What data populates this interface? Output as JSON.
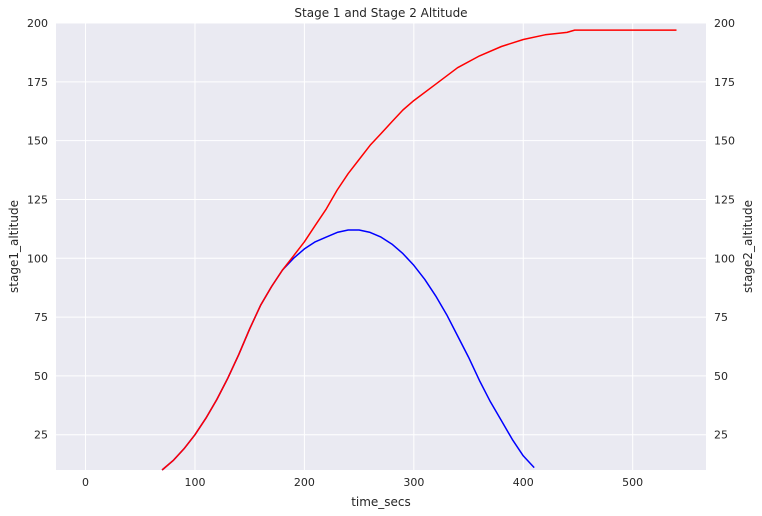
{
  "chart_data": {
    "type": "line",
    "title": "Stage 1 and Stage 2 Altitude",
    "xlabel": "time_secs",
    "ylabel_left": "stage1_altitude",
    "ylabel_right": "stage2_altitude",
    "xlim": [
      -27,
      567
    ],
    "ylim": [
      10,
      200
    ],
    "x_ticks": [
      0,
      100,
      200,
      300,
      400,
      500
    ],
    "y_ticks": [
      25,
      50,
      75,
      100,
      125,
      150,
      175,
      200
    ],
    "grid": true,
    "background": "#eaeaf2",
    "series": [
      {
        "axis": "left",
        "color": "#0000ff",
        "x": [
          70,
          80,
          90,
          100,
          110,
          120,
          130,
          140,
          150,
          160,
          170,
          180,
          190,
          200,
          210,
          220,
          230,
          240,
          250,
          260,
          270,
          280,
          290,
          300,
          310,
          320,
          330,
          340,
          350,
          360,
          370,
          380,
          390,
          400,
          410
        ],
        "y": [
          10,
          14,
          19,
          25,
          32,
          40,
          49,
          59,
          70,
          80,
          88,
          95,
          100,
          104,
          107,
          109,
          111,
          112,
          112,
          111,
          109,
          106,
          102,
          97,
          91,
          84,
          76,
          67,
          58,
          48,
          39,
          31,
          23,
          16,
          11
        ]
      },
      {
        "axis": "right",
        "color": "#ff0000",
        "x": [
          70,
          80,
          90,
          100,
          110,
          120,
          130,
          140,
          150,
          160,
          170,
          180,
          190,
          200,
          210,
          220,
          230,
          240,
          250,
          260,
          270,
          280,
          290,
          300,
          320,
          340,
          360,
          380,
          400,
          420,
          440,
          447,
          460,
          480,
          500,
          520,
          540
        ],
        "y": [
          10,
          14,
          19,
          25,
          32,
          40,
          49,
          59,
          70,
          80,
          88,
          95,
          101,
          107,
          114,
          121,
          129,
          136,
          142,
          148,
          153,
          158,
          163,
          167,
          174,
          181,
          186,
          190,
          193,
          195,
          196,
          197,
          197,
          197,
          197,
          197,
          197
        ]
      }
    ]
  }
}
